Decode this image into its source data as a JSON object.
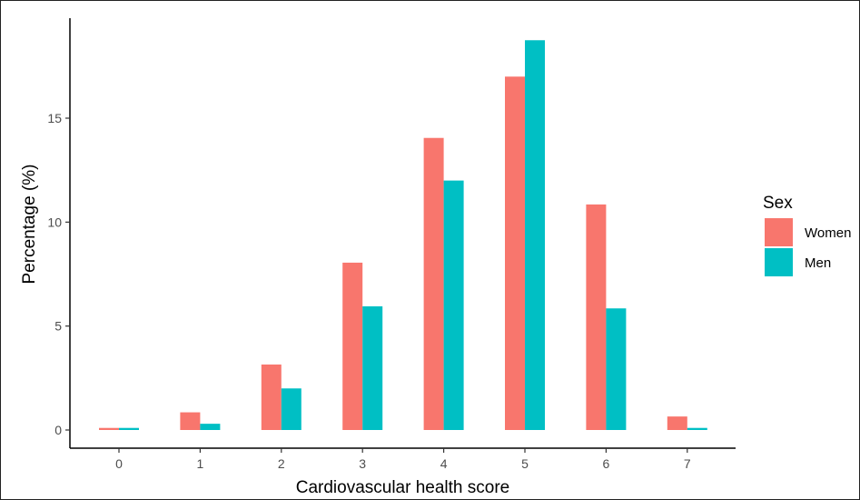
{
  "chart_data": {
    "type": "bar",
    "title": "",
    "xlabel": "Cardiovascular health score",
    "ylabel": "Percentage (%)",
    "categories": [
      "0",
      "1",
      "2",
      "3",
      "4",
      "5",
      "6",
      "7"
    ],
    "series": [
      {
        "name": "Women",
        "color": "#F8766D",
        "values": [
          0.1,
          0.85,
          3.15,
          8.05,
          14.05,
          17.0,
          10.85,
          0.65
        ]
      },
      {
        "name": "Men",
        "color": "#00BFC4",
        "values": [
          0.1,
          0.3,
          2.0,
          5.95,
          12.0,
          18.75,
          5.85,
          0.1
        ]
      }
    ],
    "yticks": [
      "0",
      "5",
      "10",
      "15"
    ],
    "ylim": [
      0,
      19.5
    ],
    "grid": false,
    "legend": {
      "title": "Sex",
      "position": "right"
    }
  }
}
